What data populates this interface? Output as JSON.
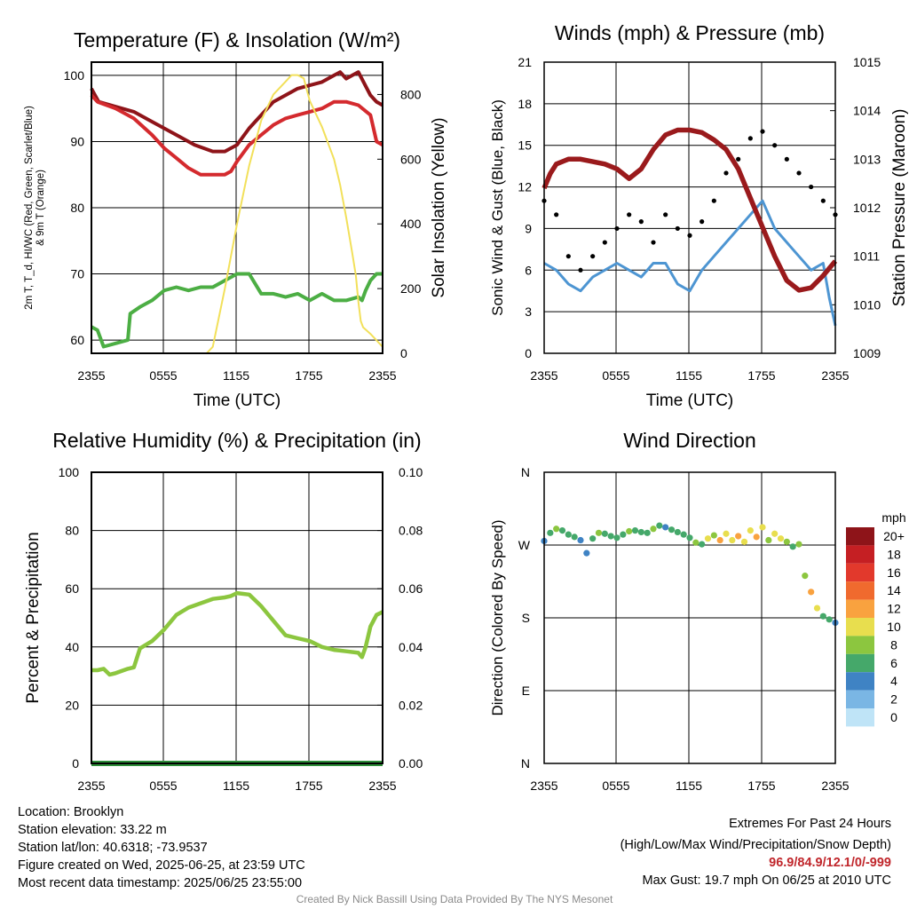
{
  "chart_data": [
    {
      "type": "line",
      "title": "Temperature (F) & Insolation (W/m²)",
      "ylabel": "2m T, T_d, HI/WC (Red, Green, Scarlet/Blue) & 9m T (Orange)",
      "ylabel_lines": [
        "2m T, T_d, HI/WC (Red, Green, Scarlet/Blue)",
        "& 9m T (Orange)"
      ],
      "y2label": "Solar Insolation (Yellow)",
      "xlabel": "Time (UTC)",
      "x_ticks": [
        "2355",
        "0555",
        "1155",
        "1755",
        "2355"
      ],
      "x_hours": [
        0,
        24
      ],
      "ylim": [
        58,
        102
      ],
      "y_ticks": [
        60,
        70,
        80,
        90,
        100
      ],
      "y2lim": [
        0,
        900
      ],
      "y2_ticks": [
        0,
        200,
        400,
        600,
        800
      ],
      "grid": true,
      "series": [
        {
          "color": "#8e1419",
          "axis": "left",
          "x": [
            0,
            0.3,
            0.6,
            3.5,
            5,
            7,
            8.5,
            10,
            11,
            11.5,
            12,
            13,
            14,
            15,
            16,
            17,
            18,
            19,
            20,
            20.5,
            21,
            21.5,
            22,
            23,
            23.5,
            24
          ],
          "y": [
            98,
            97,
            96,
            94.5,
            93,
            91,
            89.5,
            88.5,
            88.5,
            89,
            89.5,
            92,
            94,
            96,
            97,
            98,
            98.5,
            99,
            100,
            100.5,
            99.5,
            100,
            100.5,
            97,
            96,
            95.5
          ]
        },
        {
          "color": "#d42a2e",
          "axis": "left",
          "x": [
            0,
            0.5,
            2,
            3.5,
            5,
            6,
            7,
            8,
            9,
            10,
            11,
            11.5,
            12,
            13,
            14,
            15,
            16,
            17,
            18,
            19,
            20,
            21,
            22,
            23,
            23.5,
            24
          ],
          "y": [
            97,
            96,
            95,
            93.5,
            91,
            89,
            87.5,
            86,
            85,
            85,
            85,
            85.5,
            87,
            89.5,
            91,
            92.5,
            93.5,
            94,
            94.5,
            95,
            96,
            96,
            95.5,
            94,
            90,
            89.5
          ]
        },
        {
          "color": "#4cae44",
          "axis": "left",
          "x": [
            0,
            0.5,
            1,
            2,
            3,
            3.2,
            4,
            5,
            6,
            7,
            8,
            9,
            10,
            11,
            12,
            13,
            14,
            15,
            16,
            17,
            18,
            19,
            20,
            21,
            22,
            22.3,
            22.6,
            23,
            23.5,
            24
          ],
          "y": [
            62,
            61.5,
            59,
            59.5,
            60,
            64,
            65,
            66,
            67.5,
            68,
            67.5,
            68,
            68,
            69,
            70,
            70,
            67,
            67,
            66.5,
            67,
            66,
            67,
            66,
            66,
            66.5,
            66,
            67.5,
            69,
            70,
            70
          ]
        },
        {
          "color": "#f2e05a",
          "axis": "right",
          "x": [
            0,
            2,
            6,
            9,
            9.5,
            10,
            11,
            12,
            13,
            14,
            15,
            16,
            16.5,
            17,
            17.5,
            18,
            19,
            20,
            20.5,
            21,
            21.5,
            21.8,
            22,
            22.2,
            22.4,
            23,
            23.5,
            24
          ],
          "y": [
            0,
            0,
            0,
            0,
            0,
            20,
            200,
            400,
            580,
            720,
            800,
            840,
            860,
            860,
            850,
            780,
            700,
            600,
            520,
            420,
            310,
            240,
            160,
            100,
            80,
            60,
            40,
            20
          ]
        }
      ]
    },
    {
      "type": "line",
      "title": "Winds (mph) & Pressure (mb)",
      "ylabel": "Sonic Wind & Gust (Blue, Black)",
      "y2label": "Station Pressure (Maroon)",
      "xlabel": "Time (UTC)",
      "x_ticks": [
        "2355",
        "0555",
        "1155",
        "1755",
        "2355"
      ],
      "x_hours": [
        0,
        24
      ],
      "ylim": [
        0,
        21
      ],
      "y_ticks": [
        0,
        3,
        6,
        9,
        12,
        15,
        18,
        21
      ],
      "y2lim": [
        1009,
        1015
      ],
      "y2_ticks": [
        1009,
        1010,
        1011,
        1012,
        1013,
        1014,
        1015
      ],
      "grid": true,
      "series": [
        {
          "color": "#4d95d2",
          "axis": "left",
          "x": [
            0,
            1,
            2,
            3,
            4,
            5,
            6,
            7,
            8,
            9,
            10,
            11,
            12,
            13,
            14,
            15,
            16,
            17,
            18,
            19,
            20,
            21,
            22,
            23,
            23.5,
            24
          ],
          "y": [
            6.5,
            6,
            5,
            4.5,
            5.5,
            6,
            6.5,
            6,
            5.5,
            6.5,
            6.5,
            5,
            4.5,
            6,
            7,
            8,
            9,
            10,
            11,
            9,
            8,
            7,
            6,
            6.5,
            4,
            2
          ]
        },
        {
          "color": "#000000",
          "axis": "left",
          "markers": true,
          "x": [
            0,
            1,
            2,
            3,
            4,
            5,
            6,
            7,
            8,
            9,
            10,
            11,
            12,
            13,
            14,
            15,
            16,
            17,
            18,
            19,
            20,
            21,
            22,
            23,
            24
          ],
          "y": [
            11,
            10,
            7,
            6,
            7,
            8,
            9,
            10,
            9.5,
            8,
            10,
            9,
            8.5,
            9.5,
            11,
            13,
            14,
            15.5,
            16,
            15,
            14,
            13,
            12,
            11,
            10
          ]
        },
        {
          "color": "#9a1a1c",
          "axis": "right",
          "x": [
            0,
            0.5,
            1,
            2,
            3,
            4,
            5,
            6,
            7,
            8,
            9,
            10,
            11,
            12,
            13,
            14,
            15,
            16,
            17,
            18,
            19,
            20,
            21,
            22,
            23,
            24
          ],
          "y": [
            1012.4,
            1012.7,
            1012.9,
            1013.0,
            1013.0,
            1012.95,
            1012.9,
            1012.8,
            1012.6,
            1012.8,
            1013.2,
            1013.5,
            1013.6,
            1013.6,
            1013.55,
            1013.4,
            1013.2,
            1012.8,
            1012.2,
            1011.6,
            1011.0,
            1010.5,
            1010.3,
            1010.35,
            1010.6,
            1010.9
          ]
        }
      ]
    },
    {
      "type": "line",
      "title": "Relative Humidity (%) & Precipitation (in)",
      "ylabel": "Percent & Precipitation",
      "x_ticks": [
        "2355",
        "0555",
        "1155",
        "1755",
        "2355"
      ],
      "x_hours": [
        0,
        24
      ],
      "ylim": [
        0,
        100
      ],
      "y_ticks": [
        0,
        20,
        40,
        60,
        80,
        100
      ],
      "y2lim": [
        0,
        0.1
      ],
      "y2_ticks": [
        "0.00",
        "0.02",
        "0.04",
        "0.06",
        "0.08",
        "0.10"
      ],
      "grid": true,
      "series": [
        {
          "color": "#8cc63f",
          "axis": "left",
          "x": [
            0,
            0.5,
            1,
            1.5,
            2,
            3,
            3.5,
            4,
            5,
            6,
            7,
            8,
            9,
            10,
            11,
            11.5,
            12,
            13,
            14,
            15,
            16,
            17,
            18,
            19,
            20,
            21,
            22,
            22.3,
            22.6,
            23,
            23.5,
            24
          ],
          "y": [
            32,
            32,
            32.5,
            30.5,
            31,
            32.5,
            33,
            39.5,
            42,
            46,
            51,
            53.5,
            55,
            56.5,
            57,
            57.5,
            58.5,
            58,
            54,
            49,
            44,
            43,
            42,
            40,
            39,
            38.5,
            38,
            36.5,
            40,
            47,
            51,
            52
          ]
        },
        {
          "color": "#2f8e3a",
          "axis": "left",
          "x": [
            0,
            24
          ],
          "y": [
            0,
            0
          ]
        }
      ]
    },
    {
      "type": "scatter",
      "title": "Wind Direction",
      "ylabel": "Direction (Colored By Speed)",
      "x_ticks": [
        "2355",
        "0555",
        "1155",
        "1755",
        "2355"
      ],
      "x_hours": [
        0,
        24
      ],
      "ylim": [
        0,
        360
      ],
      "y_ticks": [
        {
          "deg": 0,
          "label": "N"
        },
        {
          "deg": 90,
          "label": "E"
        },
        {
          "deg": 180,
          "label": "S"
        },
        {
          "deg": 270,
          "label": "W"
        },
        {
          "deg": 360,
          "label": "N"
        }
      ],
      "grid": true,
      "x": [
        0,
        0.5,
        1,
        1.5,
        2,
        2.5,
        3,
        3.5,
        4,
        4.5,
        5,
        5.5,
        6,
        6.5,
        7,
        7.5,
        8,
        8.5,
        9,
        9.5,
        10,
        10.5,
        11,
        11.5,
        12,
        12.5,
        13,
        13.5,
        14,
        14.5,
        15,
        15.5,
        16,
        16.5,
        17,
        17.5,
        18,
        18.5,
        19,
        19.5,
        20,
        20.5,
        21,
        21.5,
        22,
        22.5,
        23,
        23.5,
        24
      ],
      "y": [
        275,
        285,
        290,
        288,
        283,
        280,
        276,
        260,
        278,
        285,
        284,
        281,
        279,
        283,
        287,
        288,
        286,
        285,
        290,
        294,
        292,
        289,
        286,
        283,
        279,
        273,
        271,
        278,
        282,
        276,
        284,
        276,
        281,
        274,
        288,
        280,
        292,
        276,
        284,
        278,
        274,
        268,
        271,
        232,
        212,
        192,
        182,
        178,
        174
      ],
      "speed": [
        4,
        6,
        7,
        6,
        5,
        6,
        4,
        3,
        5,
        7,
        6,
        6,
        5,
        6,
        7,
        6,
        5,
        6,
        7,
        5,
        4,
        5,
        6,
        5,
        6,
        7,
        6,
        10,
        8,
        12,
        9,
        10,
        11,
        10,
        9,
        12,
        10,
        8,
        9,
        10,
        8,
        6,
        7,
        7,
        12,
        10,
        6,
        5,
        4
      ],
      "legend_title": "mph",
      "colorbar": [
        {
          "label": "20+",
          "color": "#8e1419"
        },
        {
          "label": "18",
          "color": "#c51f23"
        },
        {
          "label": "16",
          "color": "#e2392c"
        },
        {
          "label": "14",
          "color": "#f06a2e"
        },
        {
          "label": "12",
          "color": "#f9a23f"
        },
        {
          "label": "10",
          "color": "#e8de4e"
        },
        {
          "label": "8",
          "color": "#8cc63f"
        },
        {
          "label": "6",
          "color": "#45a86a"
        },
        {
          "label": "4",
          "color": "#3f83c4"
        },
        {
          "label": "2",
          "color": "#7ab6e4"
        },
        {
          "label": "0",
          "color": "#bfe4f7"
        }
      ]
    }
  ],
  "info": {
    "location": "Location: Brooklyn",
    "elevation": "Station elevation: 33.22 m",
    "latlon": "Station lat/lon: 40.6318; -73.9537",
    "created": "Figure created on Wed, 2025-06-25, at 23:59 UTC",
    "recent": "Most recent data timestamp: 2025/06/25 23:55:00"
  },
  "extremes": {
    "title": "Extremes For Past 24 Hours",
    "subtitle": "(High/Low/Max Wind/Precipitation/Snow Depth)",
    "values": "96.9/84.9/12.1/0/-999",
    "gust": "Max Gust: 19.7 mph On 06/25 at 2010 UTC"
  },
  "credit": "Created By Nick Bassill Using Data Provided By The NYS Mesonet"
}
